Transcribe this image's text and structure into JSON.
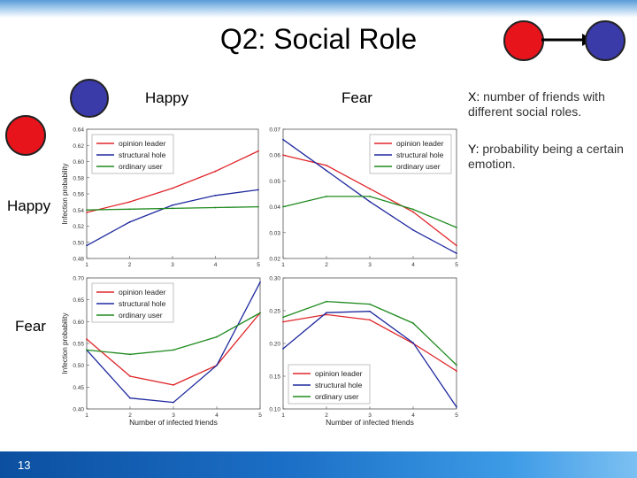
{
  "slide": {
    "title": "Q2: Social Role",
    "slide_number": "13",
    "column_labels": [
      "Happy",
      "Fear"
    ],
    "row_labels": [
      "Happy",
      "Fear"
    ],
    "description": {
      "x_prefix": "X:",
      "x_text": "number of friends with different social roles.",
      "y_prefix": "Y:",
      "y_text": "probability being a certain emotion."
    },
    "colors": {
      "node_blue": "#3a3aa8",
      "node_red": "#e8141c",
      "series_red": "#e0262a",
      "series_blue": "#1f2a9e",
      "series_green": "#1e8a1e"
    }
  },
  "chart_data": [
    {
      "type": "line",
      "panel": "happy-happy",
      "x": [
        1,
        2,
        3,
        4,
        5
      ],
      "xticks": [
        "1",
        "2",
        "3",
        "4",
        "5"
      ],
      "ylim": [
        0.48,
        0.64
      ],
      "yticks": [
        "0.48",
        "0.50",
        "0.52",
        "0.54",
        "0.56",
        "0.58",
        "0.60",
        "0.62",
        "0.64"
      ],
      "ylabel": "Infection probability",
      "xlabel": "",
      "legend_position": "top-left",
      "series": [
        {
          "name": "opinion leader",
          "color": "#e0262a",
          "values": [
            0.537,
            0.55,
            0.567,
            0.588,
            0.613
          ]
        },
        {
          "name": "structural hole",
          "color": "#1f2a9e",
          "values": [
            0.496,
            0.525,
            0.546,
            0.558,
            0.565
          ]
        },
        {
          "name": "ordinary user",
          "color": "#1e8a1e",
          "values": [
            0.54,
            0.541,
            0.542,
            0.543,
            0.544
          ]
        }
      ]
    },
    {
      "type": "line",
      "panel": "happy-fear",
      "x": [
        1,
        2,
        3,
        4,
        5
      ],
      "xticks": [
        "1",
        "2",
        "3",
        "4",
        "5"
      ],
      "ylim": [
        0.02,
        0.07
      ],
      "yticks": [
        "0.02",
        "0.03",
        "0.04",
        "0.05",
        "0.06",
        "0.07"
      ],
      "ylabel": "",
      "xlabel": "",
      "legend_position": "top-right",
      "series": [
        {
          "name": "opinion leader",
          "color": "#e0262a",
          "values": [
            0.06,
            0.056,
            0.047,
            0.038,
            0.025
          ]
        },
        {
          "name": "structural hole",
          "color": "#1f2a9e",
          "values": [
            0.066,
            0.054,
            0.042,
            0.031,
            0.022
          ]
        },
        {
          "name": "ordinary user",
          "color": "#1e8a1e",
          "values": [
            0.04,
            0.044,
            0.044,
            0.039,
            0.032
          ]
        }
      ]
    },
    {
      "type": "line",
      "panel": "fear-happy",
      "x": [
        1,
        2,
        3,
        4,
        5
      ],
      "xticks": [
        "1",
        "2",
        "3",
        "4",
        "5"
      ],
      "ylim": [
        0.4,
        0.7
      ],
      "yticks": [
        "0.40",
        "0.45",
        "0.50",
        "0.55",
        "0.60",
        "0.65",
        "0.70"
      ],
      "ylabel": "Infection probability",
      "xlabel": "Number of infected friends",
      "legend_position": "top-left",
      "series": [
        {
          "name": "opinion leader",
          "color": "#e0262a",
          "values": [
            0.56,
            0.475,
            0.455,
            0.5,
            0.62
          ]
        },
        {
          "name": "structural hole",
          "color": "#1f2a9e",
          "values": [
            0.535,
            0.425,
            0.415,
            0.5,
            0.69
          ]
        },
        {
          "name": "ordinary user",
          "color": "#1e8a1e",
          "values": [
            0.535,
            0.525,
            0.535,
            0.565,
            0.62
          ]
        }
      ]
    },
    {
      "type": "line",
      "panel": "fear-fear",
      "x": [
        1,
        2,
        3,
        4,
        5
      ],
      "xticks": [
        "1",
        "2",
        "3",
        "4",
        "5"
      ],
      "ylim": [
        0.1,
        0.3
      ],
      "yticks": [
        "0.10",
        "0.15",
        "0.20",
        "0.25",
        "0.30"
      ],
      "ylabel": "",
      "xlabel": "Number of infected friends",
      "legend_position": "bottom-left",
      "series": [
        {
          "name": "opinion leader",
          "color": "#e0262a",
          "values": [
            0.233,
            0.244,
            0.236,
            0.2,
            0.158
          ]
        },
        {
          "name": "structural hole",
          "color": "#1f2a9e",
          "values": [
            0.192,
            0.247,
            0.249,
            0.201,
            0.103
          ]
        },
        {
          "name": "ordinary user",
          "color": "#1e8a1e",
          "values": [
            0.24,
            0.264,
            0.26,
            0.231,
            0.167
          ]
        }
      ]
    }
  ]
}
